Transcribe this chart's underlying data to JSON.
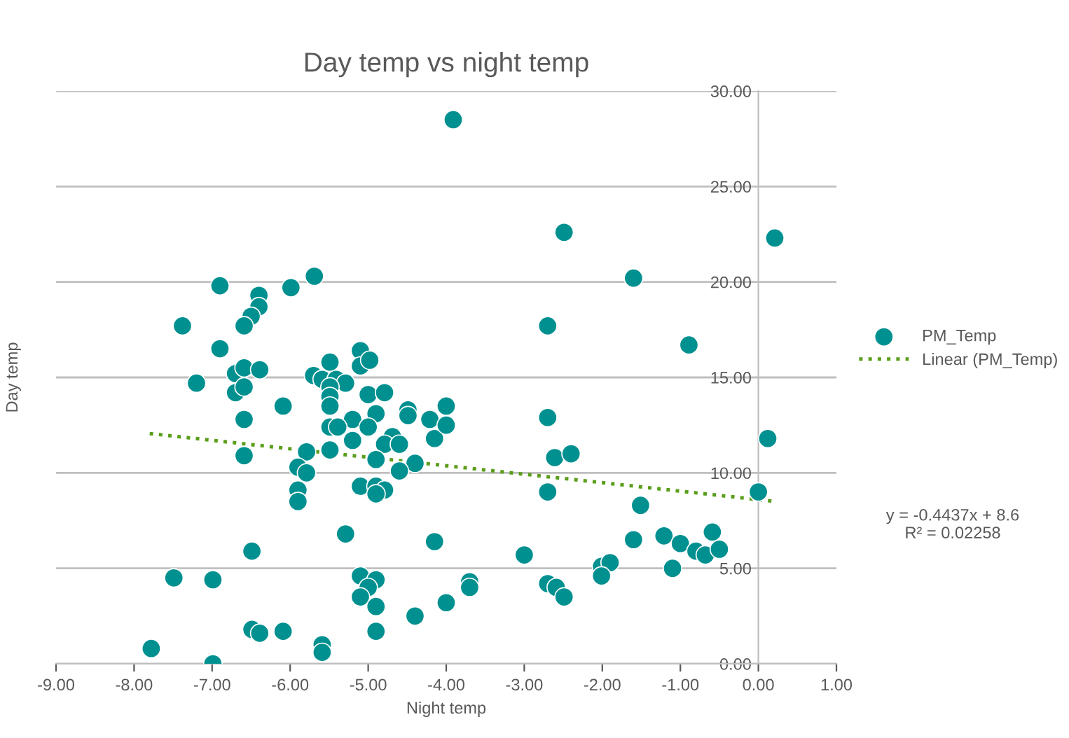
{
  "chart_data": {
    "type": "scatter",
    "title": "Day temp vs night temp",
    "xlabel": "Night temp",
    "ylabel": "Day temp",
    "xlim": [
      -9,
      1
    ],
    "ylim": [
      0,
      30
    ],
    "xticks": [
      {
        "value": -9,
        "label": "-9.00"
      },
      {
        "value": -8,
        "label": "-8.00"
      },
      {
        "value": -7,
        "label": "-7.00"
      },
      {
        "value": -6,
        "label": "-6.00"
      },
      {
        "value": -5,
        "label": "-5.00"
      },
      {
        "value": -4,
        "label": "-4.00"
      },
      {
        "value": -3,
        "label": "-3.00"
      },
      {
        "value": -2,
        "label": "-2.00"
      },
      {
        "value": -1,
        "label": "-1.00"
      },
      {
        "value": 0,
        "label": "0.00"
      },
      {
        "value": 1,
        "label": "1.00"
      }
    ],
    "yticks": [
      {
        "value": 0,
        "label": "0.00"
      },
      {
        "value": 5,
        "label": "5.00"
      },
      {
        "value": 10,
        "label": "10.00"
      },
      {
        "value": 15,
        "label": "15.00"
      },
      {
        "value": 20,
        "label": "20.00"
      },
      {
        "value": 25,
        "label": "25.00"
      },
      {
        "value": 30,
        "label": "30.00"
      }
    ],
    "grid": "y",
    "legend": "right",
    "marker": "circle",
    "annotations": [
      "y = -0.4437x + 8.6\nR² = 0.02258"
    ],
    "series": [
      {
        "name": "PM_Temp",
        "color": "#009090",
        "x": [
          -6.9,
          -6.4,
          -6.4,
          -6.5,
          -6.59,
          -5.99,
          -5.69,
          -7.38,
          -6.9,
          -7.2,
          -6.7,
          -6.59,
          -6.39,
          -6.7,
          -6.59,
          -6.59,
          -6.09,
          -6.59,
          -5.49,
          -5.7,
          -5.59,
          -5.41,
          -5.29,
          -5.49,
          -5.49,
          -5.49,
          -5.1,
          -5.1,
          -4.98,
          -5.0,
          -4.79,
          -5.2,
          -4.9,
          -5.0,
          -5.49,
          -5.39,
          -4.49,
          -4.49,
          -4.21,
          -4.15,
          -5.2,
          -5.49,
          -5.79,
          -4.69,
          -4.79,
          -4.6,
          -4.9,
          -4.4,
          -4.6,
          -5.9,
          -5.79,
          -5.9,
          -5.9,
          -5.1,
          -4.9,
          -4.79,
          -4.9,
          -5.29,
          -4.15,
          -6.49,
          -7.49,
          -6.99,
          -5.1,
          -4.9,
          -5.0,
          -5.1,
          -4.9,
          -4.4,
          -6.49,
          -6.39,
          -6.09,
          -4.9,
          -5.59,
          -5.59,
          -7.78,
          -6.99,
          -3.91,
          -2.49,
          -1.6,
          0.21,
          -2.7,
          -0.89,
          -2.7,
          -4.0,
          -4.0,
          -2.61,
          -2.4,
          0.12,
          -2.7,
          0.0,
          -1.51,
          -3.0,
          -1.6,
          -1.21,
          -1.0,
          -0.59,
          -0.8,
          -0.68,
          -0.5,
          -1.1,
          -2.01,
          -1.9,
          -2.01,
          -3.7,
          -3.7,
          -4.0,
          -2.7,
          -2.59,
          -2.49
        ],
        "values": [
          19.8,
          19.3,
          18.7,
          18.2,
          17.7,
          19.7,
          20.3,
          17.7,
          16.5,
          14.7,
          15.2,
          15.5,
          15.4,
          14.2,
          14.5,
          12.8,
          13.5,
          10.9,
          15.8,
          15.1,
          14.9,
          14.9,
          14.7,
          14.5,
          14.0,
          13.5,
          16.4,
          15.6,
          15.9,
          14.1,
          14.2,
          12.8,
          13.1,
          12.4,
          12.4,
          12.4,
          13.3,
          13.0,
          12.8,
          11.8,
          11.7,
          11.2,
          11.1,
          11.9,
          11.5,
          11.5,
          10.7,
          10.5,
          10.1,
          10.3,
          10.0,
          9.1,
          8.5,
          9.3,
          9.3,
          9.1,
          8.9,
          6.8,
          6.4,
          5.9,
          4.5,
          4.4,
          4.6,
          4.4,
          4.0,
          3.5,
          3.0,
          2.5,
          1.8,
          1.6,
          1.7,
          1.7,
          1.0,
          0.6,
          0.8,
          0.0,
          28.5,
          22.6,
          20.2,
          22.3,
          17.7,
          16.7,
          12.9,
          13.5,
          12.5,
          10.8,
          11.0,
          11.8,
          9.0,
          9.0,
          8.3,
          5.7,
          6.5,
          6.7,
          6.3,
          6.9,
          5.9,
          5.7,
          6.0,
          5.0,
          5.1,
          5.3,
          4.6,
          4.3,
          4.0,
          3.2,
          4.2,
          4.0,
          3.5
        ]
      },
      {
        "name": "Linear (PM_Temp)",
        "type": "line",
        "color": "#5a9e1a",
        "line_style": "dotted",
        "marker": "none",
        "x": [
          -7.8,
          0.2
        ],
        "values": [
          12.06,
          8.51
        ]
      }
    ]
  }
}
